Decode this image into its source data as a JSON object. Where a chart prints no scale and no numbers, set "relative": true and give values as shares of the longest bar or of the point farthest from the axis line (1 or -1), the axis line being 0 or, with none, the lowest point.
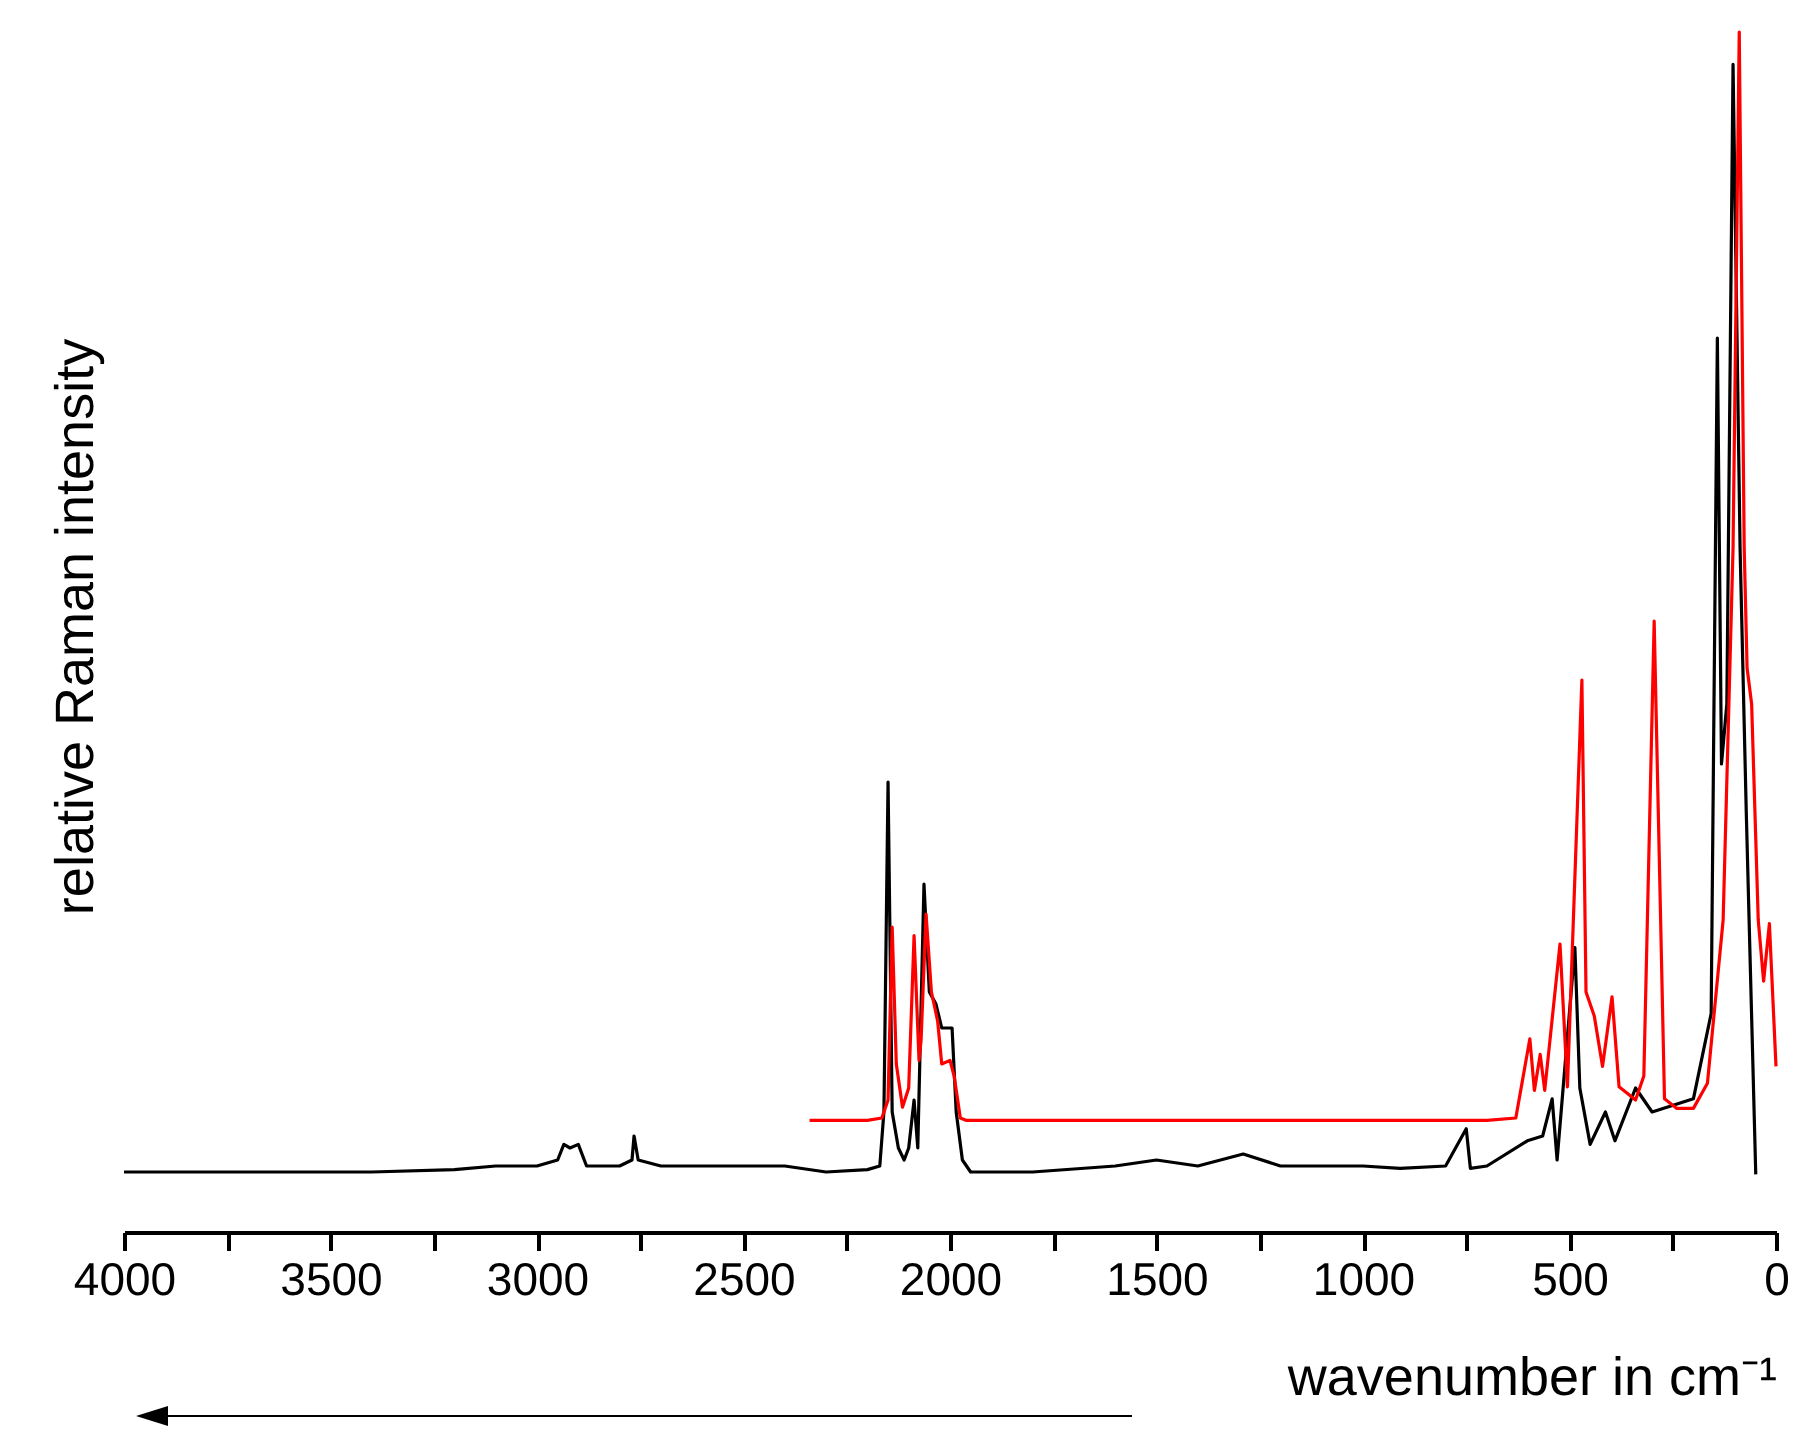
{
  "chart_data": {
    "type": "line",
    "relative": true,
    "xlabel": "wavenumber in cm⁻¹",
    "ylabel": "relative Raman intensity",
    "xlim": [
      4000,
      0
    ],
    "xticks": [
      4000,
      {
        "value": 3750,
        "label": null
      },
      3500,
      {
        "value": 3250,
        "label": null
      },
      3000,
      {
        "value": 2750,
        "label": null
      },
      2500,
      {
        "value": 2250,
        "label": null
      },
      2000,
      {
        "value": 1750,
        "label": null
      },
      1500,
      {
        "value": 1250,
        "label": null
      },
      1000,
      {
        "value": 750,
        "label": null
      },
      500,
      {
        "value": 250,
        "label": null
      },
      0
    ],
    "series": [
      {
        "color": "#000000",
        "x": [
          4000,
          3800,
          3600,
          3400,
          3200,
          3100,
          3000,
          2950,
          2935,
          2920,
          2900,
          2880,
          2800,
          2770,
          2765,
          2755,
          2700,
          2600,
          2500,
          2400,
          2300,
          2200,
          2170,
          2160,
          2150,
          2140,
          2125,
          2111,
          2100,
          2087,
          2078,
          2063,
          2050,
          2034,
          2020,
          1995,
          1985,
          1970,
          1950,
          1800,
          1600,
          1500,
          1400,
          1290,
          1200,
          1000,
          910,
          800,
          750,
          740,
          700,
          602,
          565,
          542,
          530,
          487,
          475,
          450,
          413,
          390,
          340,
          300,
          200,
          157,
          142,
          132,
          119,
          104,
          87,
          72,
          49
        ],
        "values": [
          0.05,
          0.05,
          0.05,
          0.05,
          0.052,
          0.055,
          0.055,
          0.06,
          0.073,
          0.07,
          0.073,
          0.055,
          0.055,
          0.06,
          0.08,
          0.06,
          0.055,
          0.055,
          0.055,
          0.055,
          0.05,
          0.052,
          0.055,
          0.1,
          0.375,
          0.1,
          0.07,
          0.06,
          0.07,
          0.11,
          0.07,
          0.29,
          0.2,
          0.19,
          0.17,
          0.17,
          0.1,
          0.06,
          0.05,
          0.05,
          0.055,
          0.06,
          0.055,
          0.065,
          0.055,
          0.055,
          0.053,
          0.055,
          0.086,
          0.053,
          0.055,
          0.076,
          0.08,
          0.111,
          0.06,
          0.237,
          0.12,
          0.073,
          0.1,
          0.076,
          0.12,
          0.1,
          0.111,
          0.182,
          0.745,
          0.39,
          0.44,
          0.973,
          0.57,
          0.35,
          0.048
        ]
      },
      {
        "color": "#ff0000",
        "x": [
          2340,
          2200,
          2165,
          2150,
          2140,
          2130,
          2115,
          2100,
          2087,
          2075,
          2070,
          2058,
          2045,
          2030,
          2020,
          2000,
          1990,
          1975,
          1960,
          1800,
          1500,
          1200,
          900,
          700,
          630,
          596,
          585,
          571,
          560,
          523,
          505,
          470,
          460,
          440,
          420,
          397,
          380,
          340,
          320,
          295,
          270,
          240,
          200,
          166,
          128,
          104,
          89,
          77,
          70,
          59,
          43,
          30,
          16,
          0
        ],
        "values": [
          0.093,
          0.093,
          0.095,
          0.11,
          0.254,
          0.14,
          0.104,
          0.12,
          0.247,
          0.143,
          0.16,
          0.265,
          0.2,
          0.176,
          0.14,
          0.143,
          0.13,
          0.095,
          0.093,
          0.093,
          0.093,
          0.093,
          0.093,
          0.093,
          0.095,
          0.161,
          0.118,
          0.148,
          0.118,
          0.24,
          0.121,
          0.46,
          0.2,
          0.18,
          0.138,
          0.196,
          0.121,
          0.11,
          0.13,
          0.509,
          0.111,
          0.103,
          0.103,
          0.124,
          0.26,
          0.57,
          1,
          0.57,
          0.47,
          0.44,
          0.26,
          0.209,
          0.257,
          0.138
        ]
      }
    ]
  }
}
